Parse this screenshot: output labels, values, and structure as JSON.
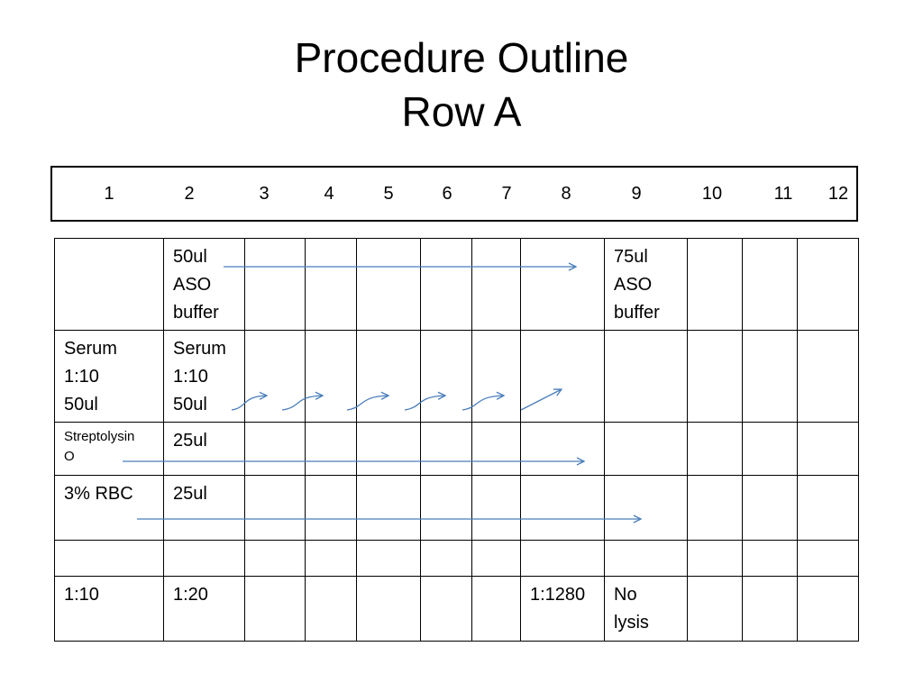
{
  "title": {
    "line1": "Procedure Outline",
    "line2": "Row A"
  },
  "header_numbers": [
    "1",
    "2",
    "3",
    "4",
    "5",
    "6",
    "7",
    "8",
    "9",
    "10",
    "11",
    "12"
  ],
  "table": {
    "rows": [
      [
        null,
        [
          "50ul",
          "ASO",
          "buffer"
        ],
        null,
        null,
        null,
        null,
        null,
        null,
        [
          "75ul",
          "ASO",
          "buffer"
        ],
        null,
        null,
        null
      ],
      [
        [
          "Serum",
          "1:10",
          "50ul"
        ],
        [
          "Serum",
          "1:10",
          "50ul"
        ],
        null,
        null,
        null,
        null,
        null,
        null,
        null,
        null,
        null,
        null
      ],
      [
        [
          "Streptolysin",
          "O"
        ],
        [
          "25ul"
        ],
        null,
        null,
        null,
        null,
        null,
        null,
        null,
        null,
        null,
        null
      ],
      [
        [
          "3% RBC"
        ],
        [
          "25ul"
        ],
        null,
        null,
        null,
        null,
        null,
        null,
        null,
        null,
        null,
        null
      ],
      [
        null,
        null,
        null,
        null,
        null,
        null,
        null,
        null,
        null,
        null,
        null,
        null
      ],
      [
        [
          "1:10"
        ],
        [
          "1:20"
        ],
        null,
        null,
        null,
        null,
        null,
        [
          "1:1280"
        ],
        [
          "No",
          "lysis"
        ],
        null,
        null,
        null
      ]
    ]
  }
}
